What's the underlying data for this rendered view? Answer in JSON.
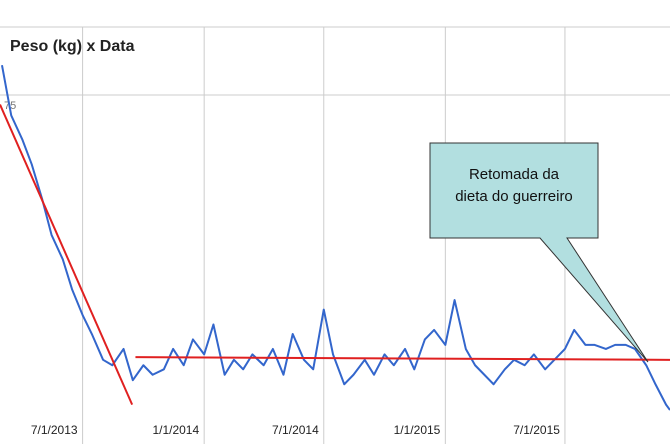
{
  "chart_data": {
    "type": "line",
    "title": "Peso (kg) x Data",
    "x": [
      "2013-03-01",
      "2013-03-15",
      "2013-04-01",
      "2013-04-15",
      "2013-05-01",
      "2013-05-15",
      "2013-06-01",
      "2013-06-15",
      "2013-07-01",
      "2013-07-15",
      "2013-08-01",
      "2013-08-15",
      "2013-09-01",
      "2013-09-15",
      "2013-10-01",
      "2013-10-15",
      "2013-11-01",
      "2013-11-15",
      "2013-12-01",
      "2013-12-15",
      "2014-01-01",
      "2014-01-15",
      "2014-02-01",
      "2014-02-15",
      "2014-03-01",
      "2014-03-15",
      "2014-04-01",
      "2014-04-15",
      "2014-05-01",
      "2014-05-15",
      "2014-06-01",
      "2014-06-15",
      "2014-07-01",
      "2014-07-15",
      "2014-08-01",
      "2014-08-15",
      "2014-09-01",
      "2014-09-15",
      "2014-10-01",
      "2014-10-15",
      "2014-11-01",
      "2014-11-15",
      "2014-12-01",
      "2014-12-15",
      "2015-01-01",
      "2015-01-15",
      "2015-02-01",
      "2015-02-15",
      "2015-03-01",
      "2015-03-15",
      "2015-04-01",
      "2015-04-15",
      "2015-05-01",
      "2015-05-15",
      "2015-06-01",
      "2015-06-15",
      "2015-07-01",
      "2015-07-15",
      "2015-08-01",
      "2015-08-15",
      "2015-09-01",
      "2015-09-15",
      "2015-10-01",
      "2015-10-15",
      "2015-11-01",
      "2015-11-15",
      "2015-12-01",
      "2015-12-07"
    ],
    "series": [
      {
        "color": "#3366cc",
        "values": [
          77.2,
          73.5,
          71.7,
          69.9,
          67.3,
          64.7,
          62.9,
          60.7,
          58.8,
          57.4,
          55.5,
          55.1,
          56.3,
          54.0,
          55.1,
          54.4,
          54.8,
          56.3,
          55.1,
          57.0,
          55.9,
          58.1,
          54.4,
          55.5,
          54.8,
          55.9,
          55.1,
          56.3,
          54.4,
          57.4,
          55.5,
          54.8,
          59.2,
          55.9,
          53.7,
          54.4,
          55.5,
          54.4,
          55.9,
          55.1,
          56.3,
          54.8,
          57.0,
          57.7,
          56.6,
          59.9,
          56.3,
          55.1,
          54.4,
          53.7,
          54.8,
          55.5,
          55.1,
          55.9,
          54.8,
          55.5,
          56.3,
          57.7,
          56.6,
          56.6,
          56.3,
          56.6,
          56.6,
          56.3,
          55.1,
          53.7,
          52.2,
          51.8
        ]
      }
    ],
    "trend_lines": [
      {
        "color": "#e02020",
        "x": [
          "2013-02-26",
          "2013-09-14"
        ],
        "values": [
          74.3,
          52.2
        ]
      },
      {
        "color": "#e02020",
        "x": [
          "2013-09-19",
          "2015-12-07"
        ],
        "values": [
          55.7,
          55.5
        ]
      }
    ],
    "xlim": [
      "2013-02-26",
      "2015-12-07"
    ],
    "xticks": [
      {
        "value": "2013-07-01",
        "label": "7/1/2013"
      },
      {
        "value": "2014-01-01",
        "label": "1/1/2014"
      },
      {
        "value": "2014-07-01",
        "label": "7/1/2014"
      },
      {
        "value": "2015-01-01",
        "label": "1/1/2015"
      },
      {
        "value": "2015-07-01",
        "label": "7/1/2015"
      }
    ],
    "ylim": [
      49.3,
      82
    ],
    "yticks": [
      75
    ],
    "grid": true,
    "annotation": {
      "lines": [
        "Retomada da",
        "dieta do guerreiro"
      ]
    }
  }
}
